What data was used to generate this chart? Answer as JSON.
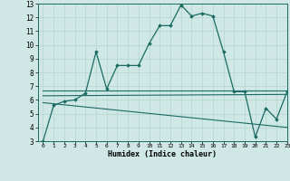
{
  "xlabel": "Humidex (Indice chaleur)",
  "ylabel": "",
  "background_color": "#cfe8e5",
  "grid_color": "#b8d8d4",
  "line_color": "#1a6b63",
  "xlim": [
    -0.5,
    23
  ],
  "ylim": [
    3,
    13
  ],
  "xticks": [
    0,
    1,
    2,
    3,
    4,
    5,
    6,
    7,
    8,
    9,
    10,
    11,
    12,
    13,
    14,
    15,
    16,
    17,
    18,
    19,
    20,
    21,
    22,
    23
  ],
  "yticks": [
    3,
    4,
    5,
    6,
    7,
    8,
    9,
    10,
    11,
    12,
    13
  ],
  "lines": [
    {
      "x": [
        0,
        1,
        2,
        3,
        4,
        5,
        6,
        7,
        8,
        9,
        10,
        11,
        12,
        13,
        14,
        15,
        16,
        17,
        18,
        19,
        20,
        21,
        22,
        23
      ],
      "y": [
        3.0,
        5.6,
        5.9,
        6.0,
        6.5,
        9.5,
        6.8,
        8.5,
        8.5,
        8.5,
        10.1,
        11.4,
        11.4,
        12.9,
        12.1,
        12.3,
        12.1,
        9.5,
        6.6,
        6.6,
        3.3,
        5.4,
        4.6,
        6.6
      ],
      "marker": "D",
      "markersize": 1.8,
      "linewidth": 0.9
    },
    {
      "x": [
        0,
        23
      ],
      "y": [
        6.7,
        6.7
      ],
      "marker": null,
      "markersize": 0,
      "linewidth": 0.8
    },
    {
      "x": [
        0,
        23
      ],
      "y": [
        6.3,
        6.4
      ],
      "marker": null,
      "markersize": 0,
      "linewidth": 0.8
    },
    {
      "x": [
        0,
        23
      ],
      "y": [
        5.8,
        4.0
      ],
      "marker": null,
      "markersize": 0,
      "linewidth": 0.8
    }
  ]
}
